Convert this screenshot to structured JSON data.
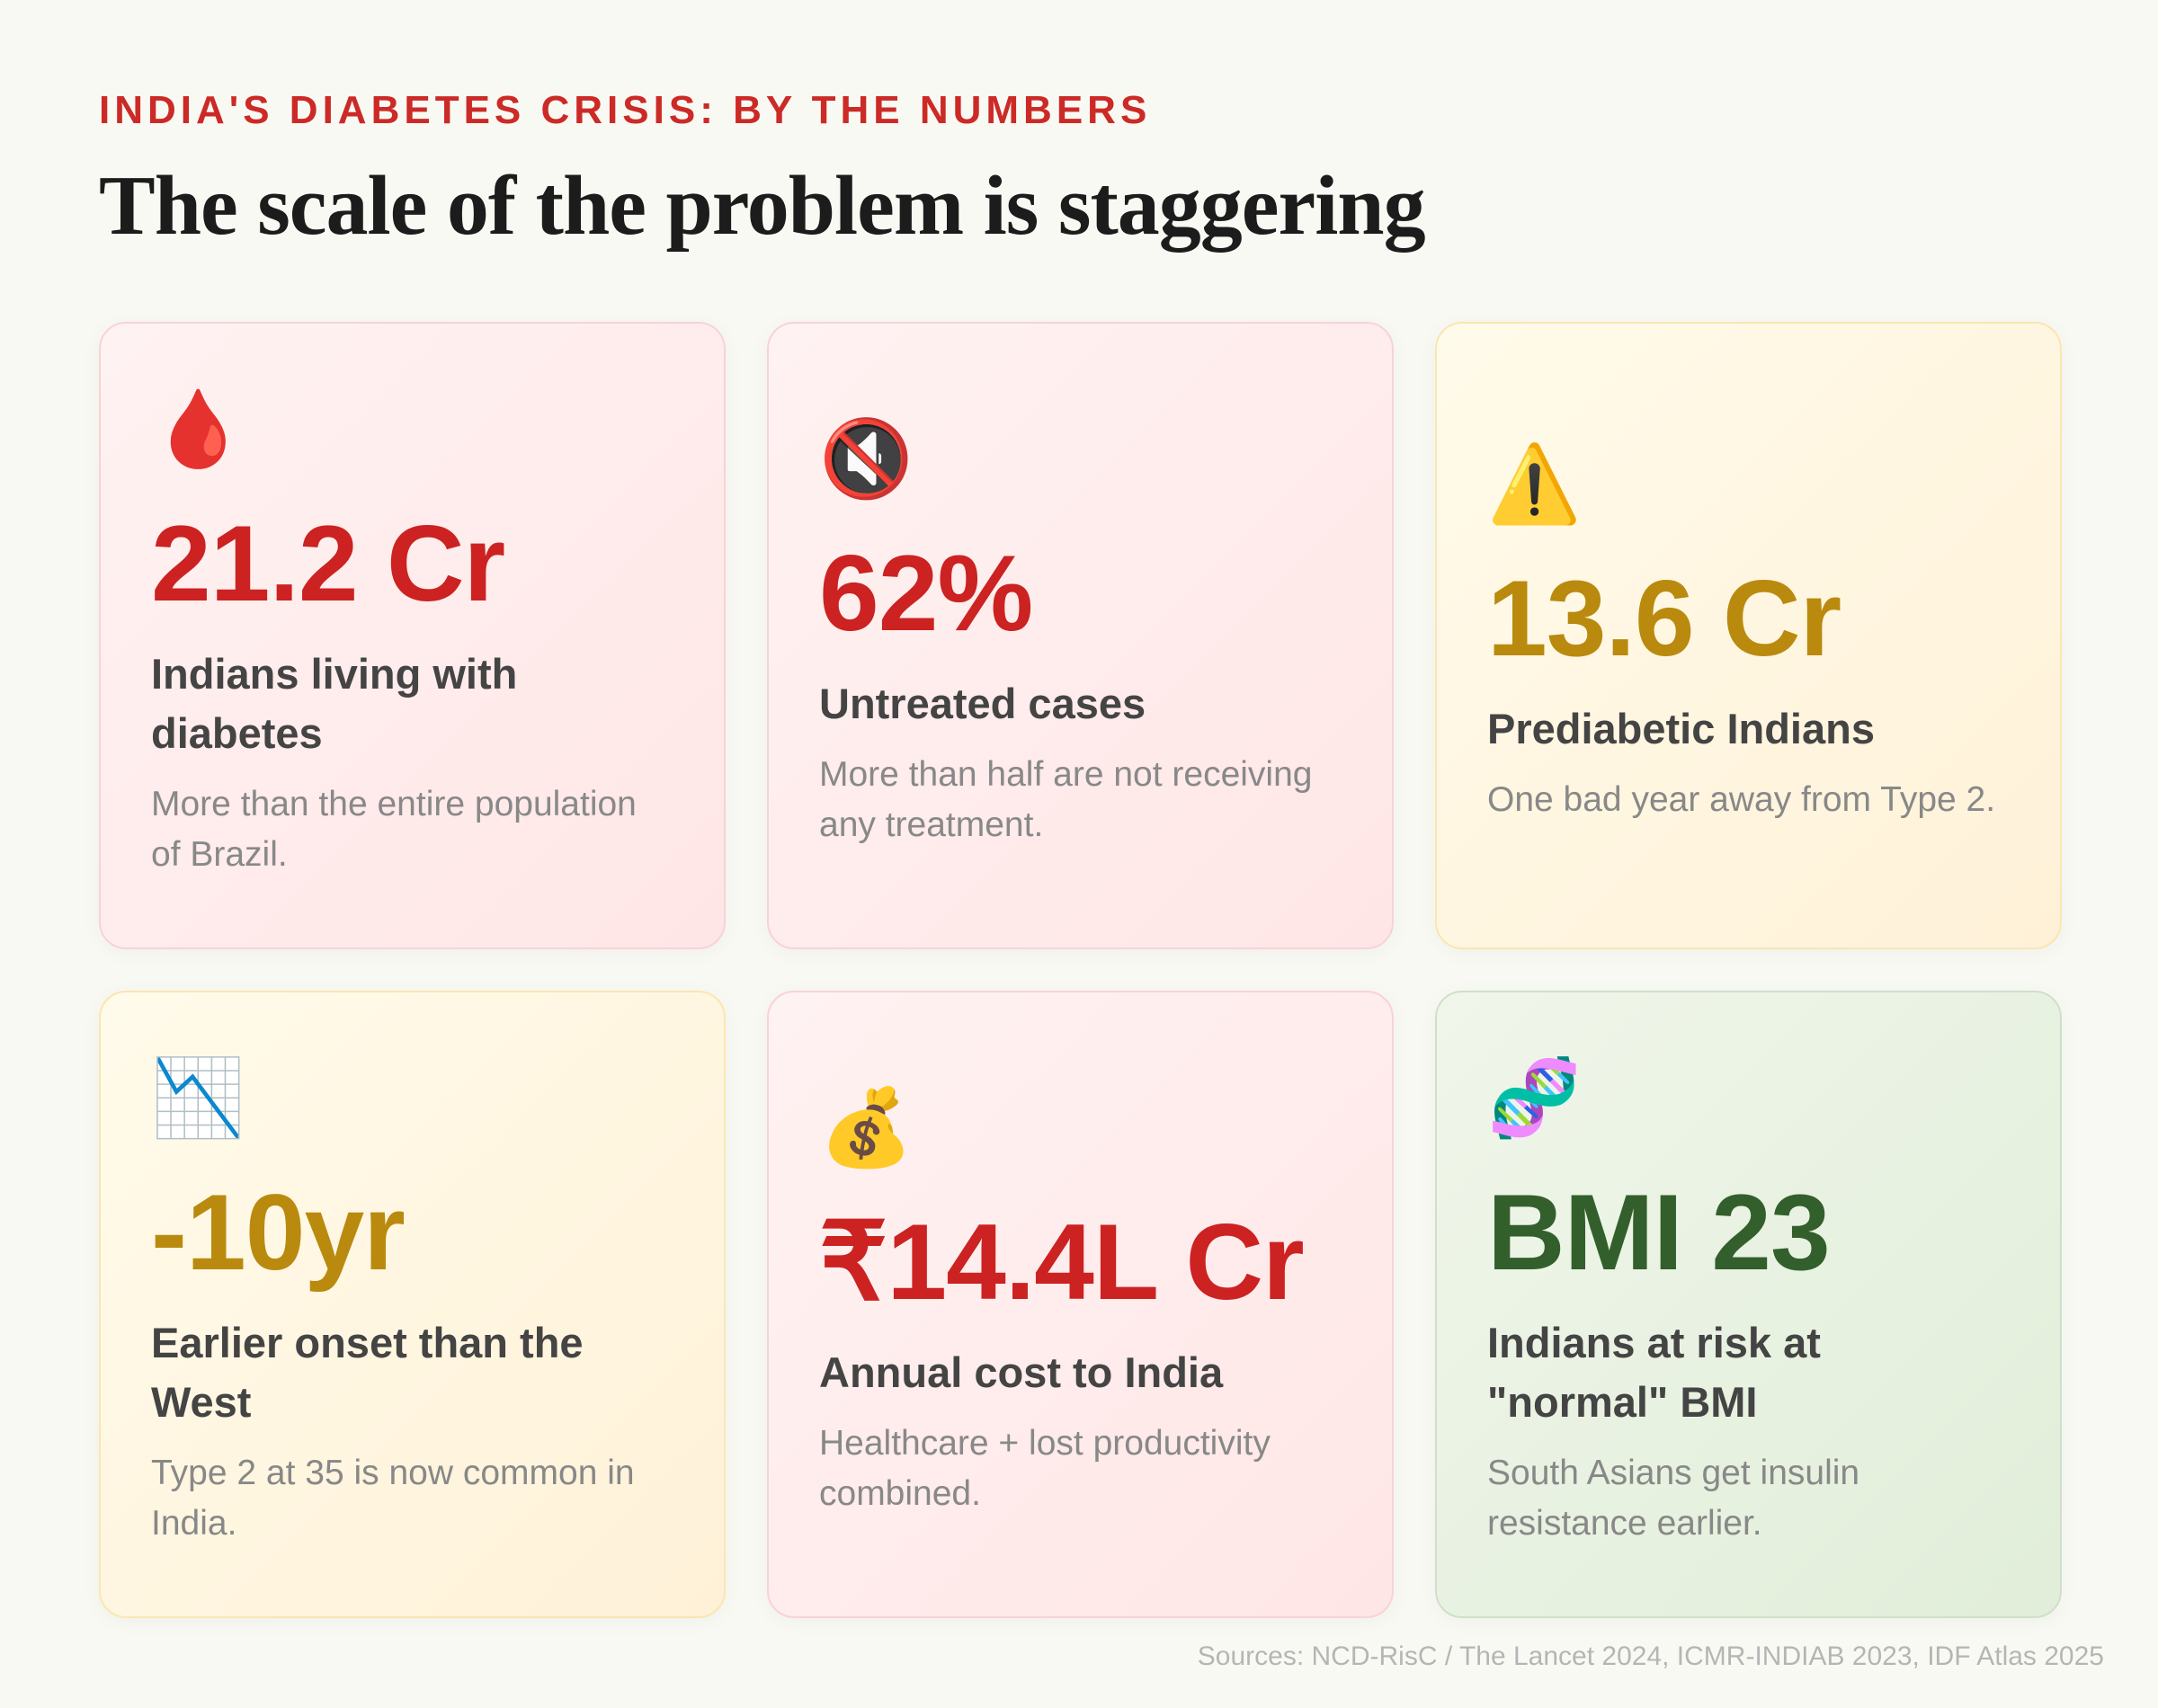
{
  "header": {
    "kicker": "INDIA'S DIABETES CRISIS: BY THE NUMBERS",
    "title": "The scale of the problem is staggering"
  },
  "colors": {
    "red": "#cc2222",
    "gold": "#b98a0e",
    "green": "#335f2c",
    "background": "#f9f9f4"
  },
  "cards": [
    {
      "icon": "🩸",
      "icon_name": "drop-of-blood-icon",
      "value": "21.2 Cr",
      "label": "Indians living with diabetes",
      "desc": "More than the entire population of Brazil.",
      "tone": "red"
    },
    {
      "icon": "🔇",
      "icon_name": "muted-speaker-icon",
      "value": "62%",
      "label": "Untreated cases",
      "desc": "More than half are not receiving any treatment.",
      "tone": "red"
    },
    {
      "icon": "⚠️",
      "icon_name": "warning-icon",
      "value": "13.6 Cr",
      "label": "Prediabetic Indians",
      "desc": "One bad year away from Type 2.",
      "tone": "yellow"
    },
    {
      "icon": "📉",
      "icon_name": "chart-decreasing-icon",
      "value": "-10yr",
      "label": "Earlier onset than the West",
      "desc": "Type 2 at 35 is now common in India.",
      "tone": "yellow"
    },
    {
      "icon": "💰",
      "icon_name": "money-bag-icon",
      "value": "₹14.4L Cr",
      "label": "Annual cost to India",
      "desc": "Healthcare + lost productivity combined.",
      "tone": "red"
    },
    {
      "icon": "🧬",
      "icon_name": "dna-icon",
      "value": "BMI 23",
      "label": "Indians at risk at \"normal\" BMI",
      "desc": "South Asians get insulin resistance earlier.",
      "tone": "green"
    }
  ],
  "footer": {
    "sources": "Sources: NCD-RisC / The Lancet 2024, ICMR-INDIAB 2023, IDF Atlas 2025"
  }
}
